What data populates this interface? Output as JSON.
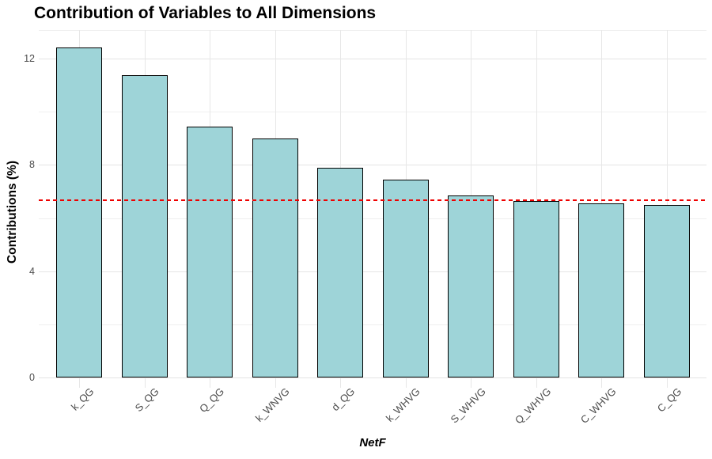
{
  "chart_data": {
    "type": "bar",
    "title": "Contribution of Variables to All Dimensions",
    "xlabel": "NetF",
    "ylabel": "Contributions (%)",
    "categories": [
      "k_QG",
      "S_QG",
      "Q_QG",
      "k_WNVG",
      "d_QG",
      "k_WHVG",
      "S_WHVG",
      "Q_WHVG",
      "C_WHVG",
      "C_QG"
    ],
    "values": [
      12.42,
      11.38,
      9.44,
      8.99,
      7.9,
      7.44,
      6.85,
      6.65,
      6.56,
      6.49
    ],
    "ylim": [
      0,
      13.07
    ],
    "yticks": [
      0,
      4,
      8,
      12
    ],
    "yticks_minor": [
      2,
      6,
      10
    ],
    "reference_line": {
      "value": 6.67,
      "color": "#ee0000",
      "style": "dashed"
    },
    "grid": true,
    "legend": "none",
    "colors": {
      "bar_fill": "#9ed4d8",
      "bar_stroke": "#000000",
      "grid_major": "#e4e4e4",
      "grid_minor": "#efefef",
      "tick_text": "#4d4d4d",
      "background": "#ffffff"
    }
  }
}
